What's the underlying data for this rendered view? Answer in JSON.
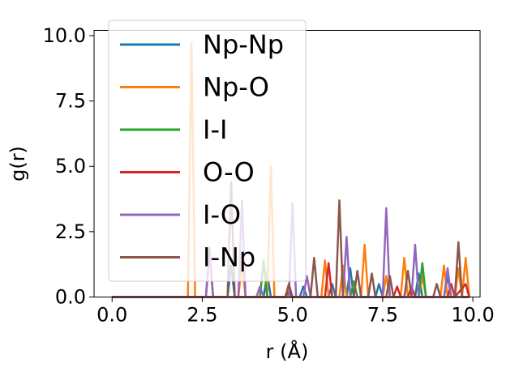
{
  "chart_data": {
    "type": "line",
    "title": "",
    "xlabel": "r (Å)",
    "ylabel": "g(r)",
    "xlim": [
      -0.5,
      10.2
    ],
    "ylim": [
      0,
      10.2
    ],
    "xticks": [
      {
        "value": 0,
        "label": "0.0"
      },
      {
        "value": 2.5,
        "label": "2.5"
      },
      {
        "value": 5,
        "label": "5.0"
      },
      {
        "value": 7.5,
        "label": "7.5"
      },
      {
        "value": 10,
        "label": "10.0"
      }
    ],
    "yticks": [
      {
        "value": 0,
        "label": "0.0"
      },
      {
        "value": 2.5,
        "label": "2.5"
      },
      {
        "value": 5,
        "label": "5.0"
      },
      {
        "value": 7.5,
        "label": "7.5"
      },
      {
        "value": 10,
        "label": "10.0"
      }
    ],
    "grid": false,
    "legend_position": "upper-left",
    "series": [
      {
        "name": "Np-Np",
        "color": "#1f77b4",
        "x": [
          0,
          3.2,
          3.3,
          3.4,
          4.2,
          4.3,
          4.4,
          5.2,
          5.3,
          5.4,
          6.0,
          6.1,
          6.2,
          6.5,
          6.6,
          6.7,
          7.3,
          7.4,
          7.5,
          8.4,
          8.5,
          8.6,
          9.2,
          9.3,
          9.4,
          9.9
        ],
        "y": [
          0,
          0,
          1.2,
          0,
          0,
          0.9,
          0,
          0,
          0.4,
          0,
          0,
          0.5,
          0,
          0,
          1.1,
          0,
          0,
          0.5,
          0,
          0,
          0.9,
          0,
          0,
          0.8,
          0,
          0
        ]
      },
      {
        "name": "Np-O",
        "color": "#ff7f0e",
        "x": [
          0,
          2.1,
          2.2,
          2.3,
          3.5,
          3.6,
          3.7,
          4.3,
          4.4,
          4.5,
          5.8,
          5.9,
          6.0,
          6.3,
          6.4,
          6.5,
          6.9,
          7.0,
          7.1,
          7.5,
          7.6,
          7.7,
          8.0,
          8.1,
          8.2,
          8.5,
          8.6,
          8.7,
          9.1,
          9.2,
          9.3,
          9.5,
          9.6,
          9.7,
          9.8,
          9.9
        ],
        "y": [
          0,
          0,
          9.7,
          0,
          0,
          1.3,
          0,
          0,
          5.0,
          0,
          0,
          1.4,
          0,
          0,
          1.2,
          0,
          0,
          2.0,
          0,
          0,
          0.8,
          0,
          0,
          1.5,
          0,
          0,
          0.8,
          0,
          0,
          1.2,
          0,
          0,
          1.1,
          0,
          1.5,
          0
        ]
      },
      {
        "name": "I-I",
        "color": "#2ca02c",
        "x": [
          0,
          4.1,
          4.2,
          4.3,
          6.6,
          6.7,
          6.8,
          8.5,
          8.6,
          8.7,
          9.9
        ],
        "y": [
          0,
          0,
          1.4,
          0,
          0,
          0.6,
          0,
          0,
          1.3,
          0,
          0
        ]
      },
      {
        "name": "O-O",
        "color": "#d62728",
        "x": [
          0,
          2.6,
          2.7,
          2.8,
          4.8,
          4.9,
          5.0,
          5.9,
          6.0,
          6.1,
          7.8,
          7.9,
          8.0,
          8.2,
          8.3,
          8.4,
          9.3,
          9.4,
          9.5,
          9.8,
          9.9
        ],
        "y": [
          0,
          0,
          1.7,
          0,
          0,
          0.2,
          0,
          0,
          1.3,
          0,
          0,
          0.4,
          0,
          0,
          0.4,
          0,
          0,
          0.5,
          0,
          0.5,
          0
        ]
      },
      {
        "name": "I-O",
        "color": "#9467bd",
        "x": [
          0,
          2.6,
          2.7,
          2.8,
          3.5,
          3.6,
          3.7,
          4.0,
          4.1,
          4.2,
          4.9,
          5.0,
          5.1,
          5.3,
          5.4,
          5.5,
          6.4,
          6.5,
          6.6,
          7.5,
          7.6,
          7.7,
          8.3,
          8.4,
          8.5,
          9.2,
          9.3,
          9.4,
          9.9
        ],
        "y": [
          0,
          0,
          1.9,
          0,
          0,
          3.7,
          0,
          0,
          0.4,
          0,
          0,
          3.6,
          0,
          0,
          0.8,
          0,
          0,
          2.3,
          0,
          0,
          3.4,
          0,
          0,
          2.0,
          0,
          0,
          1.1,
          0,
          0
        ]
      },
      {
        "name": "I-Np",
        "color": "#8c564b",
        "x": [
          0,
          3.2,
          3.3,
          3.4,
          4.8,
          4.9,
          5.0,
          5.5,
          5.6,
          5.7,
          6.2,
          6.3,
          6.4,
          6.7,
          6.8,
          6.9,
          7.1,
          7.2,
          7.3,
          7.6,
          7.7,
          7.8,
          8.1,
          8.2,
          8.3,
          8.9,
          9.0,
          9.1,
          9.5,
          9.6,
          9.7,
          9.9
        ],
        "y": [
          0,
          0,
          4.4,
          0,
          0,
          0.5,
          0,
          0,
          1.5,
          0,
          0,
          3.7,
          0,
          0,
          1.0,
          0,
          0,
          0.9,
          0,
          0,
          0.8,
          0,
          0,
          1.0,
          0,
          0,
          0.5,
          0,
          0,
          2.1,
          0,
          0
        ]
      }
    ]
  }
}
